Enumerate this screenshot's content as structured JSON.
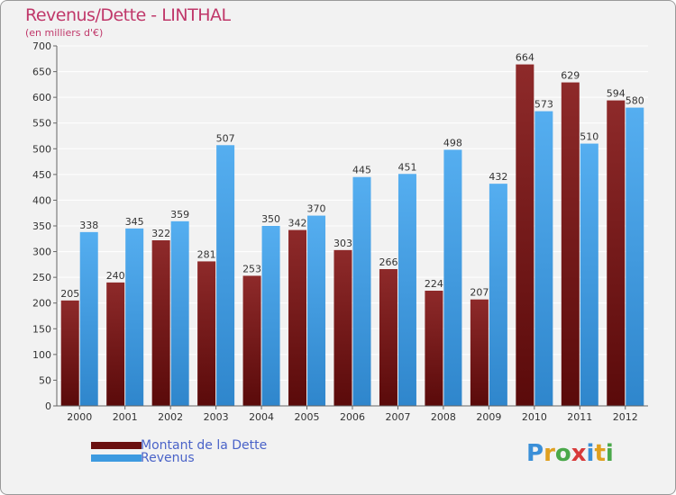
{
  "title": "Revenus/Dette - LINTHAL",
  "subtitle": "(en milliers d'€)",
  "logo_text": "Proxiti",
  "chart_data": {
    "type": "bar",
    "title": "Revenus/Dette - LINTHAL",
    "subtitle": "(en milliers d'€)",
    "categories": [
      "2000",
      "2001",
      "2002",
      "2003",
      "2004",
      "2005",
      "2006",
      "2007",
      "2008",
      "2009",
      "2010",
      "2011",
      "2012"
    ],
    "series": [
      {
        "name": "Montant de la Dette",
        "color": "#7a1a1a",
        "values": [
          205,
          240,
          322,
          281,
          253,
          342,
          303,
          266,
          224,
          207,
          664,
          629,
          594
        ]
      },
      {
        "name": "Revenus",
        "color": "#3d9ae0",
        "values": [
          338,
          345,
          359,
          507,
          350,
          370,
          445,
          451,
          498,
          432,
          573,
          510,
          580
        ]
      }
    ],
    "ylim": [
      0,
      700
    ],
    "yticks": [
      0,
      50,
      100,
      150,
      200,
      250,
      300,
      350,
      400,
      450,
      500,
      550,
      600,
      650,
      700
    ],
    "grid": true,
    "legend": "bottom-left"
  }
}
